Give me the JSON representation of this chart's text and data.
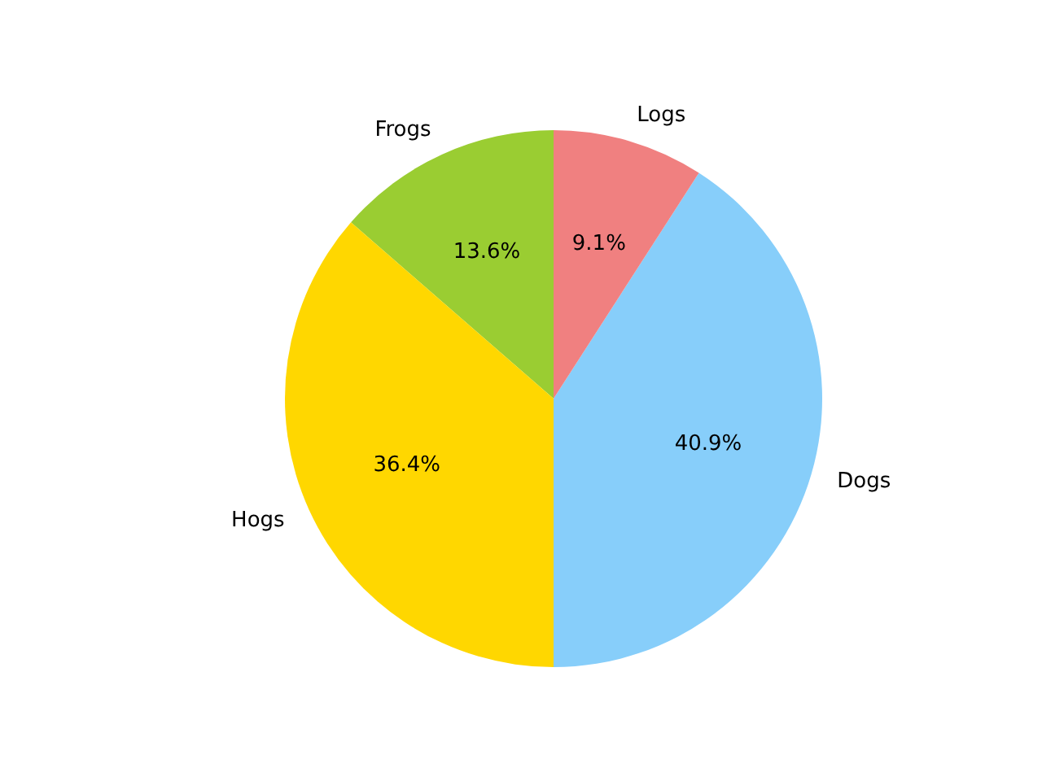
{
  "chart_data": {
    "type": "pie",
    "categories": [
      "Frogs",
      "Hogs",
      "Dogs",
      "Logs"
    ],
    "values": [
      13.6,
      36.4,
      40.9,
      9.1
    ],
    "value_labels": [
      "13.6%",
      "36.4%",
      "40.9%",
      "9.1%"
    ],
    "colors": [
      "#9acd32",
      "#ffd700",
      "#87cefa",
      "#f08080"
    ],
    "legend": false
  }
}
